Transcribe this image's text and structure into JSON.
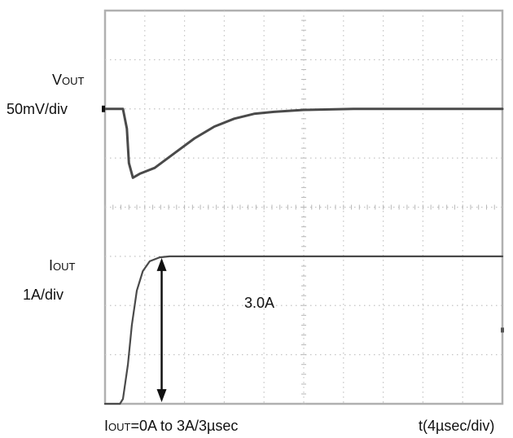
{
  "chart_data": {
    "type": "line",
    "title": "",
    "grid": true,
    "divisions": {
      "x": 10,
      "y": 8
    },
    "x_unit": "µs",
    "x_range": [
      0,
      40
    ],
    "channels": [
      {
        "name_main": "V",
        "name_sub": "OUT",
        "scale": "50mV/div",
        "offset_div": 6,
        "unit": "mV",
        "points": [
          [
            0,
            0
          ],
          [
            1.8,
            0
          ],
          [
            2.2,
            -20
          ],
          [
            2.4,
            -55
          ],
          [
            2.8,
            -70
          ],
          [
            3.5,
            -66
          ],
          [
            5,
            -60
          ],
          [
            7,
            -45
          ],
          [
            9,
            -30
          ],
          [
            11,
            -18
          ],
          [
            13,
            -10
          ],
          [
            15,
            -5
          ],
          [
            17,
            -3
          ],
          [
            20,
            -1
          ],
          [
            25,
            0
          ],
          [
            30,
            0
          ],
          [
            40,
            0
          ]
        ]
      },
      {
        "name_main": "I",
        "name_sub": "OUT",
        "scale": "1A/div",
        "offset_div": 0,
        "unit": "A",
        "points": [
          [
            0,
            0
          ],
          [
            1.5,
            0
          ],
          [
            1.8,
            0.1
          ],
          [
            2.3,
            0.8
          ],
          [
            2.7,
            1.6
          ],
          [
            3.2,
            2.3
          ],
          [
            3.8,
            2.7
          ],
          [
            4.5,
            2.9
          ],
          [
            5.5,
            2.98
          ],
          [
            6.5,
            3.0
          ],
          [
            10,
            3.0
          ],
          [
            20,
            3.0
          ],
          [
            30,
            3.0
          ],
          [
            40,
            3.0
          ]
        ]
      }
    ],
    "annotation": {
      "label": "3.0A",
      "x": 5.7,
      "from": 0,
      "to": 3.0
    },
    "test_condition": {
      "main": "I",
      "sub": "OUT",
      "rest": "=0A to 3A/3µsec"
    },
    "timebase": "t(4µsec/div)"
  }
}
